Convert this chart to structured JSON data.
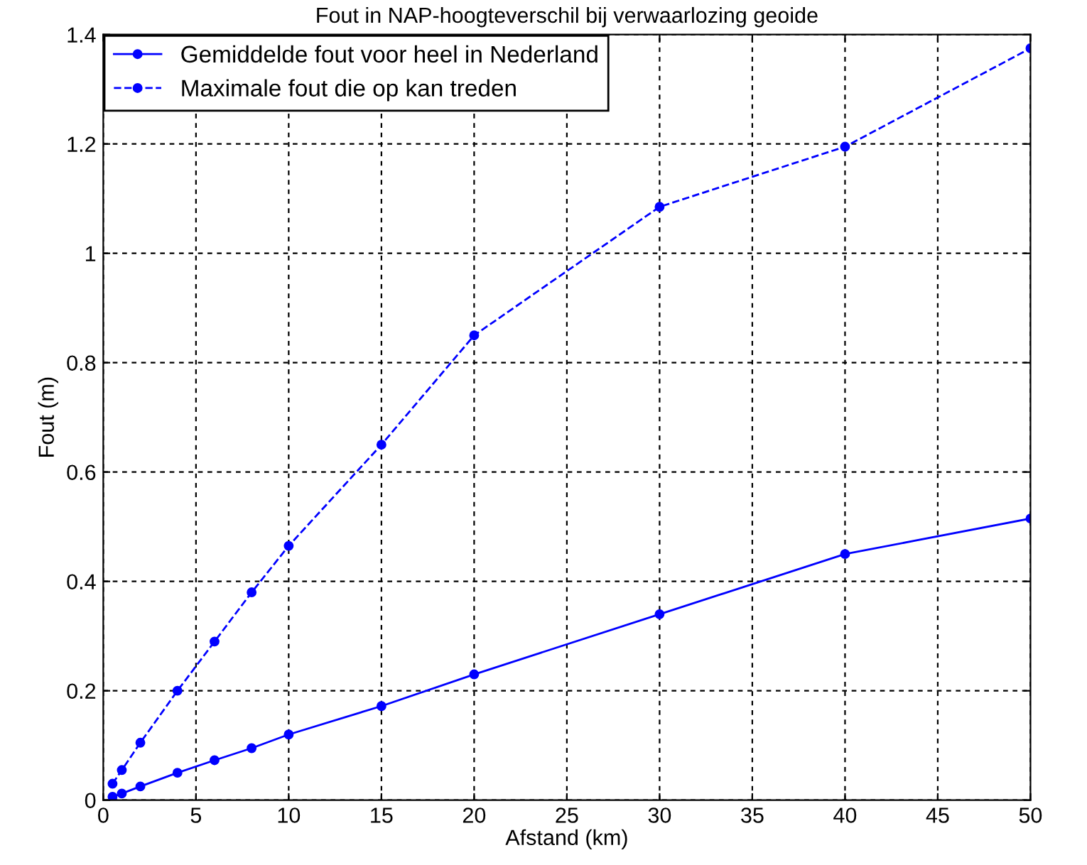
{
  "chart_data": {
    "type": "line",
    "title": "Fout in NAP-hoogteverschil bij verwaarlozing geoide",
    "xlabel": "Afstand (km)",
    "ylabel": "Fout (m)",
    "x": [
      0.5,
      1,
      2,
      4,
      6,
      8,
      10,
      15,
      20,
      30,
      40,
      50
    ],
    "series": [
      {
        "name": "Gemiddelde fout voor heel in Nederland",
        "color": "#0000ff",
        "line_style": "solid",
        "values": [
          0.006,
          0.012,
          0.025,
          0.05,
          0.073,
          0.095,
          0.12,
          0.172,
          0.23,
          0.34,
          0.45,
          0.515
        ]
      },
      {
        "name": "Maximale fout die op kan treden",
        "color": "#0000ff",
        "line_style": "dashed",
        "values": [
          0.03,
          0.055,
          0.105,
          0.2,
          0.29,
          0.38,
          0.465,
          0.65,
          0.85,
          1.085,
          1.195,
          1.375
        ]
      }
    ],
    "marker": "circle",
    "xlim": [
      0,
      50
    ],
    "ylim": [
      0,
      1.4
    ],
    "xticks": [
      0,
      5,
      10,
      15,
      20,
      25,
      30,
      35,
      40,
      45,
      50
    ],
    "yticks": [
      0,
      0.2,
      0.4,
      0.6,
      0.8,
      1,
      1.2,
      1.4
    ],
    "grid": true,
    "legend": "top left"
  }
}
